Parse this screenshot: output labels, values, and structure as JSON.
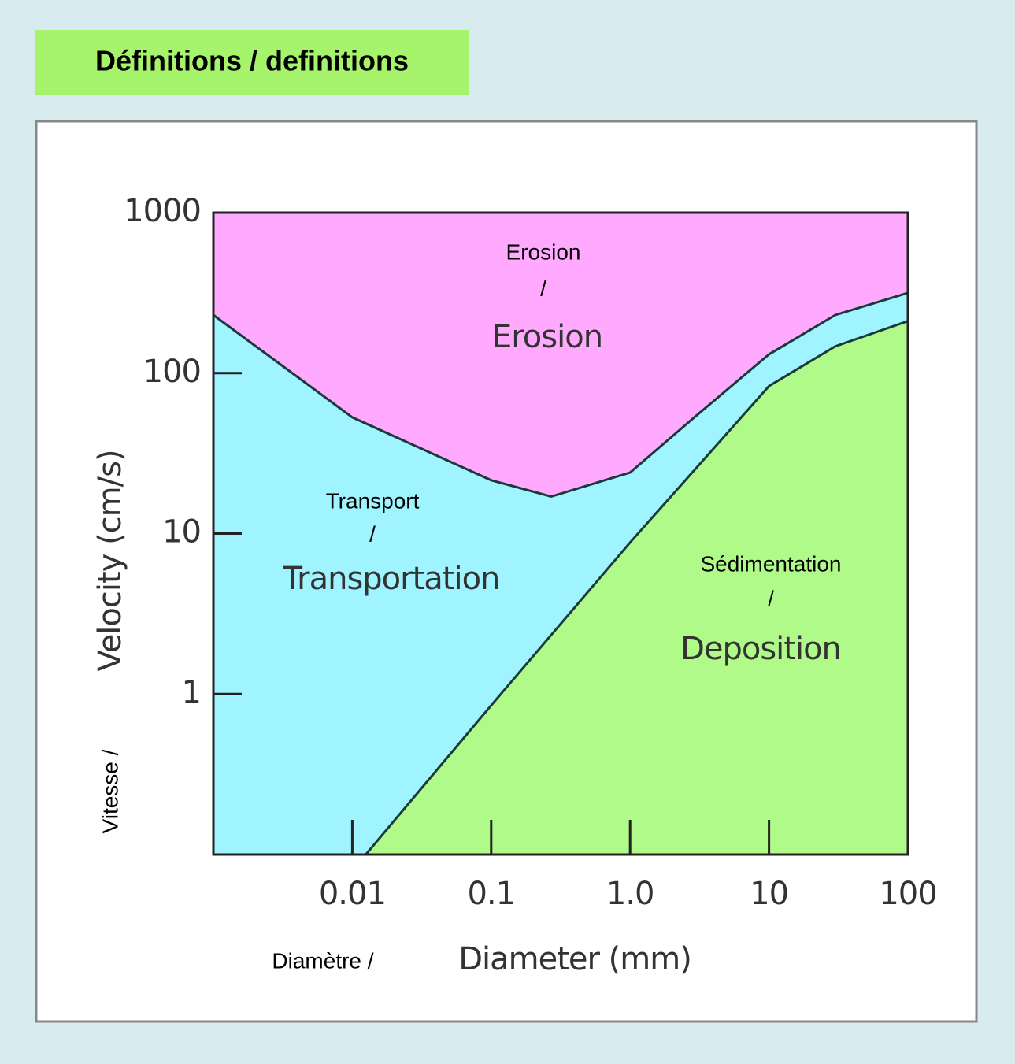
{
  "header": {
    "title": "Définitions / definitions"
  },
  "chart_data": {
    "type": "area",
    "xlabel": "Diameter (mm)",
    "xlabel_fr": "Diamètre /",
    "ylabel": "Velocity (cm/s)",
    "ylabel_fr": "Vitesse /",
    "xlog": true,
    "ylog": true,
    "xlim": [
      0.001,
      100
    ],
    "ylim": [
      0.1,
      1000
    ],
    "xticks": [
      0.01,
      0.1,
      {
        "value": 1,
        "label": "1.0"
      },
      10,
      100
    ],
    "yticks": [
      1,
      10,
      100,
      1000
    ],
    "top_color": "#ffaaff",
    "series": [
      {
        "color": "#a0f4ff",
        "x": [
          0.001,
          0.01,
          0.1,
          0.27,
          1,
          2.9,
          10,
          30,
          100
        ],
        "values": [
          230,
          53,
          21.5,
          17,
          24,
          53,
          131,
          230,
          316
        ]
      },
      {
        "color": "#b0fa8a",
        "x": [
          0.0125,
          0.1,
          1,
          10,
          30,
          100
        ],
        "values": [
          0.1,
          0.85,
          8.8,
          83,
          147,
          211
        ]
      }
    ],
    "annotations": [
      "Erosion",
      "/",
      "Erosion",
      "Transport",
      "/",
      "Transportation",
      "Sédimentation",
      "/",
      "Deposition"
    ]
  }
}
